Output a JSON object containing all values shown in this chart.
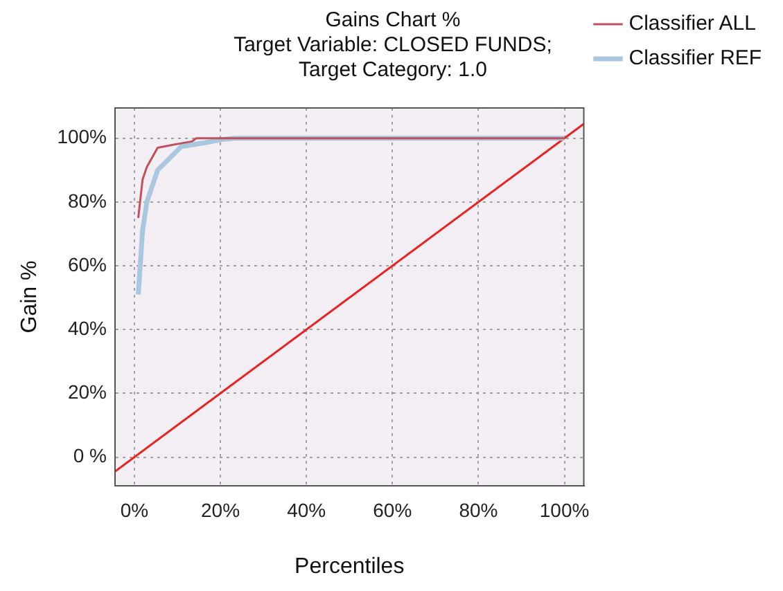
{
  "chart_data": {
    "type": "line",
    "title": [
      "Gains Chart %",
      "Target Variable: CLOSED FUNDS;",
      "Target Category: 1.0"
    ],
    "xlabel": "Percentiles",
    "ylabel": "Gain %",
    "series": [
      {
        "name": "Classifier ALL",
        "color": "#c0505a",
        "x": [
          0.9,
          1.9,
          2.9,
          5.4,
          10.4,
          13.4,
          14.4,
          20,
          100
        ],
        "values": [
          75,
          87,
          91,
          97,
          98.3,
          99,
          100,
          100,
          100
        ]
      },
      {
        "name": "Classifier REF",
        "color": "#a9c8e0",
        "x": [
          0.9,
          1.9,
          2.9,
          5.4,
          6.9,
          10.9,
          16.4,
          20.4,
          23.4,
          100
        ],
        "values": [
          51,
          71,
          80,
          90,
          92,
          97.4,
          98.6,
          99.6,
          100,
          100
        ]
      },
      {
        "color": "#e8231f",
        "x": [
          -4.5,
          104.5
        ],
        "values": [
          -4.5,
          104.5
        ]
      }
    ],
    "xlim": [
      -4.5,
      104.5
    ],
    "ylim": [
      -9,
      109.5
    ],
    "xticks": [
      {
        "value": 0,
        "label": "0%"
      },
      {
        "value": 20,
        "label": "20%"
      },
      {
        "value": 40,
        "label": "40%"
      },
      {
        "value": 60,
        "label": "60%"
      },
      {
        "value": 80,
        "label": "80%"
      },
      {
        "value": 100,
        "label": "100%"
      }
    ],
    "yticks": [
      {
        "value": 0,
        "label": "0 %"
      },
      {
        "value": 20,
        "label": "20%"
      },
      {
        "value": 40,
        "label": "40%"
      },
      {
        "value": 60,
        "label": "60%"
      },
      {
        "value": 80,
        "label": "80%"
      },
      {
        "value": 100,
        "label": "100%"
      }
    ],
    "grid": true,
    "legend": "top right",
    "marker": "none",
    "line_style": "solid"
  }
}
